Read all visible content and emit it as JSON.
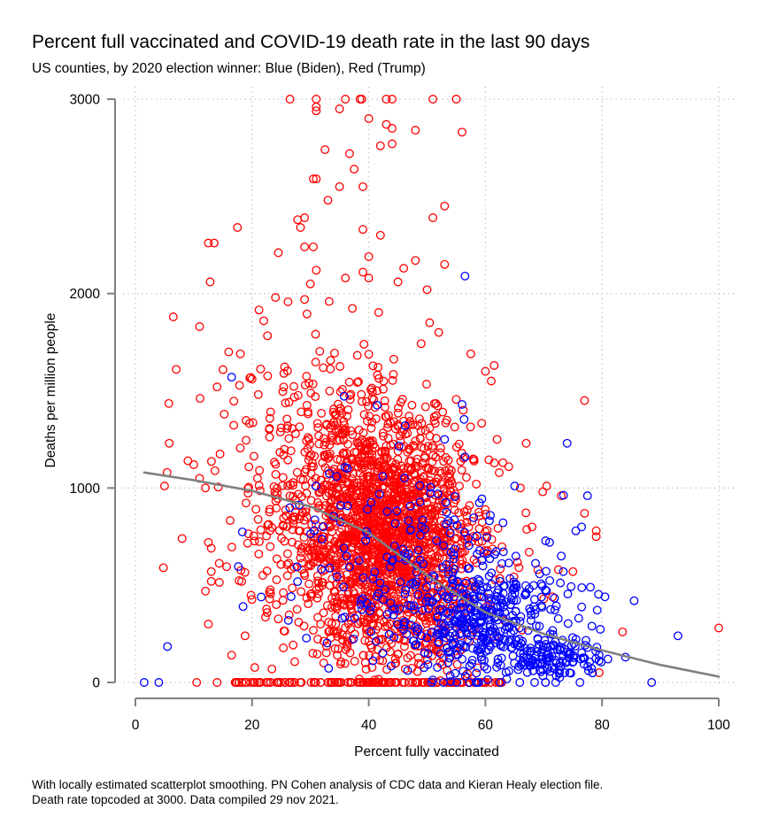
{
  "chart_data": {
    "type": "scatter",
    "title": "Percent full vaccinated and COVID-19 death rate in the last 90 days",
    "subtitle": "US counties, by 2020 election winner: Blue (Biden), Red (Trump)",
    "xlabel": "Percent fully vaccinated",
    "ylabel": "Deaths per million people",
    "xlim": [
      0,
      100
    ],
    "ylim": [
      0,
      3000
    ],
    "xticks": [
      "0",
      "20",
      "40",
      "60",
      "80",
      "100"
    ],
    "yticks": [
      "0",
      "1000",
      "2000",
      "3000"
    ],
    "grid": true,
    "note": [
      "With locally estimated scatterplot smoothing. PN Cohen analysis of CDC data and Kieran Healy election file.",
      "Death rate topcoded at 3000. Data compiled 29 nov 2021."
    ],
    "colors": {
      "trump": "#ff0000",
      "biden": "#0000ff",
      "smooth": "#808080",
      "axis": "#808080",
      "grid": "#bfbfbf"
    },
    "series": [
      {
        "name": "Trump counties",
        "color": "#ff0000",
        "cloud": [
          {
            "mx": 42,
            "sx": 7,
            "my": 760,
            "sy": 330,
            "n": 1500
          },
          {
            "mx": 30,
            "sx": 8,
            "my": 980,
            "sy": 380,
            "n": 300
          },
          {
            "mx": 50,
            "sx": 6,
            "my": 620,
            "sy": 300,
            "n": 350
          }
        ],
        "zero_band": {
          "x_min": 17,
          "x_max": 63,
          "n": 120
        },
        "points": [
          [
            26.5,
            3000
          ],
          [
            31,
            3000
          ],
          [
            36,
            3000
          ],
          [
            38.5,
            3000
          ],
          [
            38.8,
            3000
          ],
          [
            43,
            3000
          ],
          [
            44,
            3000
          ],
          [
            51,
            3000
          ],
          [
            55,
            3000
          ],
          [
            31,
            2960
          ],
          [
            31,
            2940
          ],
          [
            35,
            2950
          ],
          [
            40,
            2900
          ],
          [
            43,
            2870
          ],
          [
            44,
            2850
          ],
          [
            48,
            2840
          ],
          [
            56,
            2830
          ],
          [
            44,
            2770
          ],
          [
            42,
            2760
          ],
          [
            32.5,
            2740
          ],
          [
            36.7,
            2720
          ],
          [
            37.5,
            2640
          ],
          [
            31,
            2590
          ],
          [
            30.5,
            2590
          ],
          [
            35,
            2550
          ],
          [
            39,
            2550
          ],
          [
            33,
            2480
          ],
          [
            53,
            2450
          ],
          [
            51,
            2390
          ],
          [
            29,
            2390
          ],
          [
            27.8,
            2380
          ],
          [
            28.3,
            2340
          ],
          [
            39,
            2330
          ],
          [
            42,
            2300
          ],
          [
            17.5,
            2340
          ],
          [
            12.5,
            2260
          ],
          [
            13.5,
            2260
          ],
          [
            29,
            2240
          ],
          [
            30.5,
            2240
          ],
          [
            24.5,
            2210
          ],
          [
            40,
            2190
          ],
          [
            31,
            2120
          ],
          [
            48,
            2170
          ],
          [
            46,
            2130
          ],
          [
            39,
            2110
          ],
          [
            36,
            2080
          ],
          [
            12.8,
            2060
          ],
          [
            40,
            2080
          ],
          [
            53,
            2150
          ],
          [
            30,
            2050
          ],
          [
            50,
            2020
          ],
          [
            45,
            2060
          ],
          [
            29,
            1970
          ],
          [
            24,
            1980
          ],
          [
            6.5,
            1880
          ],
          [
            22,
            1860
          ],
          [
            11,
            1830
          ],
          [
            52,
            1800
          ],
          [
            57.5,
            1690
          ],
          [
            61.5,
            1630
          ],
          [
            60,
            1600
          ],
          [
            20,
            1560
          ],
          [
            18,
            1690
          ],
          [
            16,
            1700
          ],
          [
            14,
            1520
          ],
          [
            7,
            1610
          ],
          [
            77,
            1450
          ],
          [
            67,
            1230
          ],
          [
            70.5,
            1010
          ],
          [
            73,
            960
          ],
          [
            77,
            870
          ],
          [
            79,
            780
          ],
          [
            79,
            750
          ],
          [
            72.5,
            580
          ],
          [
            75,
            570
          ],
          [
            71.5,
            440
          ],
          [
            83.5,
            260
          ],
          [
            100,
            280
          ],
          [
            79.5,
            50
          ],
          [
            10.5,
            0
          ],
          [
            14,
            0
          ],
          [
            4.8,
            590
          ],
          [
            5,
            1010
          ],
          [
            5.8,
            1230
          ],
          [
            8,
            740
          ],
          [
            9,
            1140
          ],
          [
            10,
            1120
          ],
          [
            11,
            1050
          ],
          [
            12,
            1000
          ],
          [
            12.5,
            720
          ],
          [
            13,
            690
          ],
          [
            13,
            520
          ],
          [
            12,
            470
          ],
          [
            12.5,
            300
          ],
          [
            13,
            570
          ],
          [
            16.5,
            140
          ],
          [
            18.8,
            240
          ],
          [
            23,
            430
          ],
          [
            61,
            1550
          ],
          [
            62,
            1250
          ],
          [
            63,
            1130
          ],
          [
            64,
            1110
          ],
          [
            66,
            1000
          ],
          [
            68,
            800
          ],
          [
            69,
            580
          ],
          [
            70,
            430
          ],
          [
            67.5,
            670
          ]
        ]
      },
      {
        "name": "Biden counties",
        "color": "#0000ff",
        "cloud": [
          {
            "mx": 60,
            "sx": 7,
            "my": 320,
            "sy": 150,
            "n": 360
          },
          {
            "mx": 50,
            "sx": 8,
            "my": 500,
            "sy": 250,
            "n": 130
          },
          {
            "mx": 38,
            "sx": 9,
            "my": 700,
            "sy": 300,
            "n": 70
          },
          {
            "mx": 72,
            "sx": 4,
            "my": 130,
            "sy": 60,
            "n": 110
          }
        ],
        "points": [
          [
            56.5,
            2090
          ],
          [
            16.5,
            1570
          ],
          [
            56,
            1430
          ],
          [
            74,
            1230
          ],
          [
            53,
            1250
          ],
          [
            56.5,
            1160
          ],
          [
            65,
            1010
          ],
          [
            77.5,
            960
          ],
          [
            78,
            490
          ],
          [
            80.5,
            440
          ],
          [
            85.5,
            420
          ],
          [
            93,
            240
          ],
          [
            88.5,
            0
          ],
          [
            1.5,
            0
          ],
          [
            4,
            0
          ],
          [
            5.5,
            185
          ],
          [
            75.5,
            780
          ],
          [
            76.5,
            800
          ],
          [
            71,
            720
          ],
          [
            73,
            650
          ],
          [
            76,
            330
          ],
          [
            79.5,
            140
          ],
          [
            81,
            120
          ],
          [
            84,
            130
          ],
          [
            58,
            430
          ],
          [
            60,
            370
          ],
          [
            62,
            240
          ],
          [
            64,
            210
          ],
          [
            66,
            150
          ],
          [
            68,
            110
          ]
        ]
      }
    ],
    "smooth_line": {
      "name": "LOESS smoothing",
      "x": [
        1.5,
        10,
        20,
        30,
        40,
        50,
        60,
        70,
        80,
        90,
        100
      ],
      "y": [
        1080,
        1040,
        985,
        905,
        770,
        550,
        360,
        250,
        165,
        90,
        30
      ]
    }
  }
}
